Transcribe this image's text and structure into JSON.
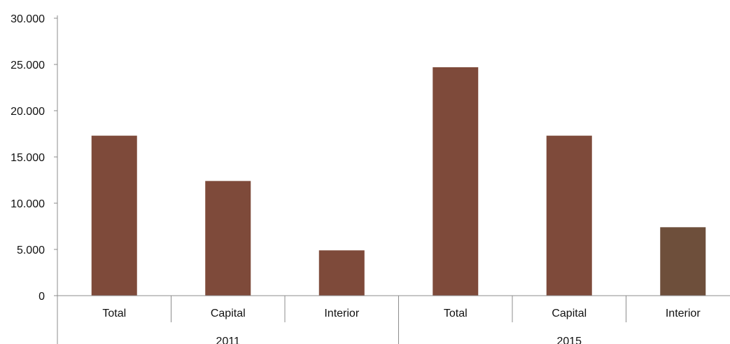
{
  "chart_data": {
    "type": "bar",
    "categories": [
      "Total",
      "Capital",
      "Interior",
      "Total",
      "Capital",
      "Interior"
    ],
    "groups": [
      {
        "label": "2011",
        "start": 0,
        "count": 3
      },
      {
        "label": "2015",
        "start": 3,
        "count": 3
      }
    ],
    "values": [
      17300,
      12400,
      4900,
      24700,
      17300,
      7400
    ],
    "bar_colors": [
      "#7e4a3a",
      "#7e4a3a",
      "#7e4a3a",
      "#7e4a3a",
      "#7e4a3a",
      "#6e4f3b"
    ],
    "yticks": [
      "0",
      "5.000",
      "10.000",
      "15.000",
      "20.000",
      "25.000",
      "30.000"
    ],
    "ytick_values": [
      0,
      5000,
      10000,
      15000,
      20000,
      25000,
      30000
    ],
    "ylim": [
      0,
      30000
    ],
    "title": "",
    "xlabel": "",
    "ylabel": "",
    "grid": false,
    "legend": "none"
  }
}
